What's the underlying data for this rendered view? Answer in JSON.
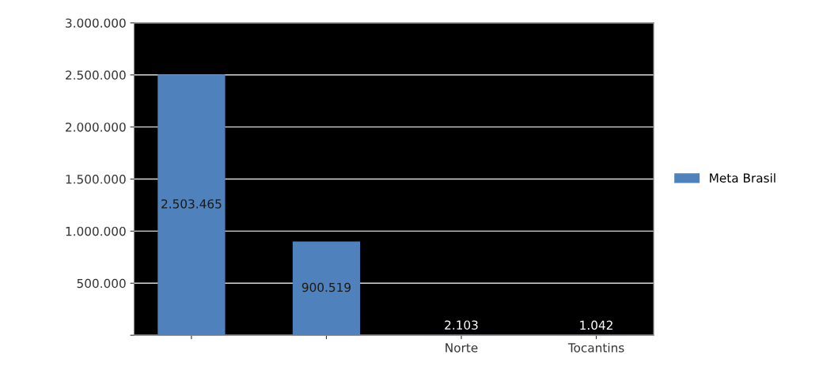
{
  "chart_data": {
    "type": "bar",
    "categories": [
      null,
      null,
      "Norte",
      "Tocantins"
    ],
    "series": [
      {
        "name": "Meta Brasil",
        "color": "#4f81bd",
        "values": [
          2503465,
          900519,
          2103,
          1042
        ],
        "value_labels": [
          "2.503.465",
          "900.519",
          "2.103",
          "1.042"
        ]
      }
    ],
    "ylim": [
      0,
      3000000
    ],
    "yticks": [
      {
        "value": 0,
        "label": null
      },
      {
        "value": 500000,
        "label": "500.000"
      },
      {
        "value": 1000000,
        "label": "1.000.000"
      },
      {
        "value": 1500000,
        "label": "1.500.000"
      },
      {
        "value": 2000000,
        "label": "2.000.000"
      },
      {
        "value": 2500000,
        "label": "2.500.000"
      },
      {
        "value": 3000000,
        "label": "3.000.000"
      }
    ],
    "grid": "y",
    "legend": "right"
  }
}
